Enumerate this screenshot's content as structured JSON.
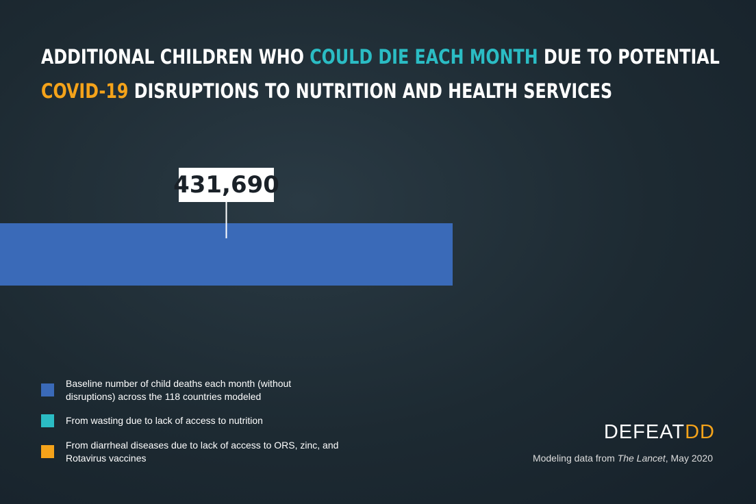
{
  "title": {
    "line1_a": "ADDITIONAL CHILDREN WHO ",
    "line1_b": "COULD DIE EACH MONTH",
    "line1_c": " DUE TO POTENTIAL",
    "line2_a": "COVID-19",
    "line2_b": " DISRUPTIONS TO NUTRITION AND HEALTH SERVICES"
  },
  "chart_data": {
    "type": "bar",
    "orientation": "horizontal",
    "categories": [
      "Baseline"
    ],
    "values": [
      431690
    ],
    "value_labels": [
      "431,690"
    ],
    "xlim": [
      0,
      721000
    ],
    "colors": {
      "baseline": "#3a6ab8",
      "wasting": "#2bbcc4",
      "diarrheal": "#f5a31a"
    }
  },
  "legend": [
    {
      "label": "Baseline number of child deaths each month (without disruptions) across the  118 countries modeled",
      "color": "#3a6ab8"
    },
    {
      "label": "From wasting due to lack of access to nutrition",
      "color": "#2bbcc4"
    },
    {
      "label": "From diarrheal diseases due to lack of access to ORS, zinc, and Rotavirus vaccines",
      "color": "#f5a31a"
    }
  ],
  "logo": {
    "a": "DEFEAT",
    "b": "DD"
  },
  "source": {
    "a": "Modeling data from ",
    "b": "The Lancet",
    "c": ", May 2020"
  }
}
